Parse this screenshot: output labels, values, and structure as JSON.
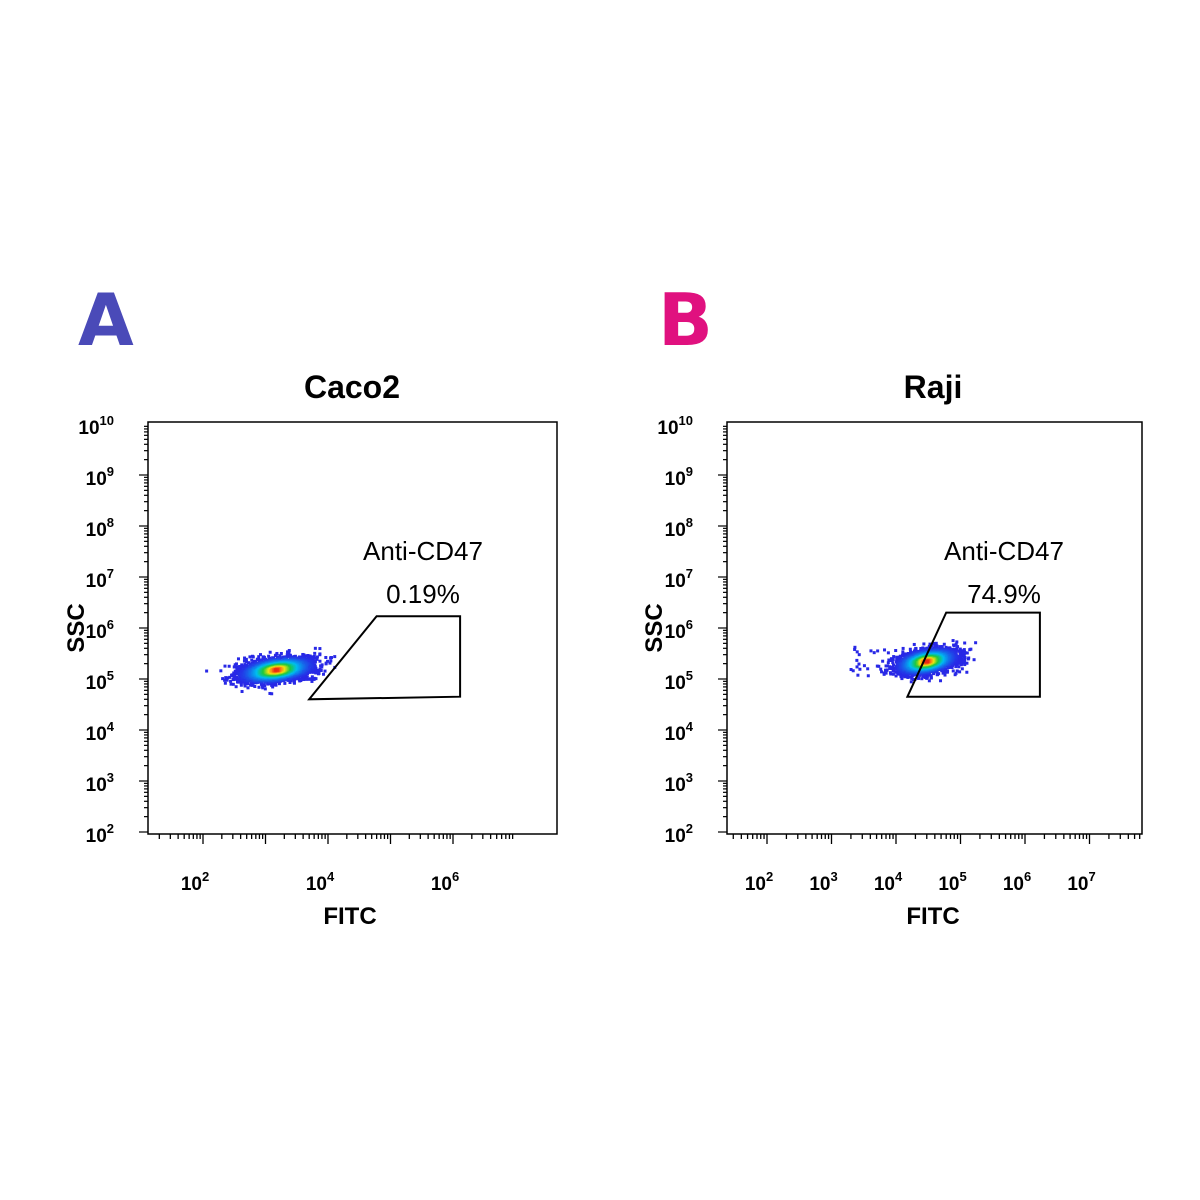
{
  "panels": [
    {
      "letter": "A",
      "color": "#4a4ab8"
    },
    {
      "letter": "B",
      "color": "#e0117f"
    }
  ],
  "chart_data": [
    {
      "type": "scatter",
      "subtype": "flow-cytometry density dot plot",
      "title": "Caco2",
      "xlabel": "FITC",
      "ylabel": "SSC",
      "x_scale": "log",
      "y_scale": "log",
      "xlim": [
        10,
        10000000
      ],
      "ylim": [
        100,
        10000000000
      ],
      "x_ticks": [
        {
          "base": "10",
          "exp": "2",
          "value": 100
        },
        {
          "base": "10",
          "exp": "4",
          "value": 10000
        },
        {
          "base": "10",
          "exp": "6",
          "value": 1000000
        }
      ],
      "y_ticks": [
        {
          "base": "10",
          "exp": "2",
          "value": 100
        },
        {
          "base": "10",
          "exp": "3",
          "value": 1000
        },
        {
          "base": "10",
          "exp": "4",
          "value": 10000
        },
        {
          "base": "10",
          "exp": "5",
          "value": 100000
        },
        {
          "base": "10",
          "exp": "6",
          "value": 1000000
        },
        {
          "base": "10",
          "exp": "7",
          "value": 10000000
        },
        {
          "base": "10",
          "exp": "8",
          "value": 100000000
        },
        {
          "base": "10",
          "exp": "9",
          "value": 1000000000
        },
        {
          "base": "10",
          "exp": "10",
          "value": 10000000000
        }
      ],
      "gate": {
        "name": "Anti-CD47",
        "percent": "0.19%",
        "vertices": [
          [
            5000,
            40000
          ],
          [
            60000,
            1700000
          ],
          [
            1300000,
            1700000
          ],
          [
            1300000,
            45000
          ]
        ]
      },
      "population": {
        "center": [
          1500,
          150000
        ],
        "spread_log_x": 0.28,
        "spread_log_y": 0.13,
        "max_x": 20000
      }
    },
    {
      "type": "scatter",
      "subtype": "flow-cytometry density dot plot",
      "title": "Raji",
      "xlabel": "FITC",
      "ylabel": "SSC",
      "x_scale": "log",
      "y_scale": "log",
      "xlim": [
        10,
        100000000
      ],
      "ylim": [
        100,
        10000000000
      ],
      "x_ticks": [
        {
          "base": "10",
          "exp": "2",
          "value": 100
        },
        {
          "base": "10",
          "exp": "3",
          "value": 1000
        },
        {
          "base": "10",
          "exp": "4",
          "value": 10000
        },
        {
          "base": "10",
          "exp": "5",
          "value": 100000
        },
        {
          "base": "10",
          "exp": "6",
          "value": 1000000
        },
        {
          "base": "10",
          "exp": "7",
          "value": 10000000
        }
      ],
      "y_ticks": [
        {
          "base": "10",
          "exp": "2",
          "value": 100
        },
        {
          "base": "10",
          "exp": "3",
          "value": 1000
        },
        {
          "base": "10",
          "exp": "4",
          "value": 10000
        },
        {
          "base": "10",
          "exp": "5",
          "value": 100000
        },
        {
          "base": "10",
          "exp": "6",
          "value": 1000000
        },
        {
          "base": "10",
          "exp": "7",
          "value": 10000000
        },
        {
          "base": "10",
          "exp": "8",
          "value": 100000000
        },
        {
          "base": "10",
          "exp": "9",
          "value": 1000000000
        },
        {
          "base": "10",
          "exp": "10",
          "value": 10000000000
        }
      ],
      "gate": {
        "name": "Anti-CD47",
        "percent": "74.9%",
        "vertices": [
          [
            15000,
            45000
          ],
          [
            60000,
            2000000
          ],
          [
            1700000,
            2000000
          ],
          [
            1700000,
            45000
          ]
        ]
      },
      "population": {
        "center": [
          30000,
          220000
        ],
        "spread_log_x": 0.22,
        "spread_log_y": 0.13,
        "max_x": 200000
      }
    }
  ]
}
